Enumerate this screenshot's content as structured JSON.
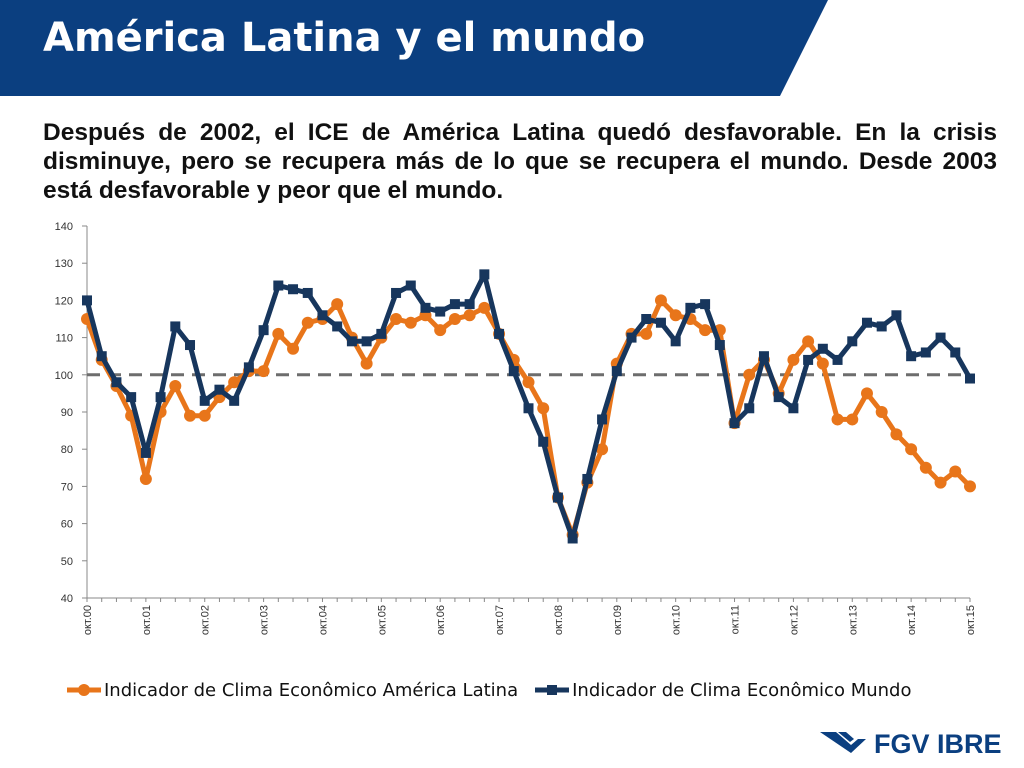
{
  "slide": {
    "title": "América Latina y el mundo",
    "subtitle": "Después de 2002, el ICE de América Latina quedó desfavorable. En la crisis disminuye, pero se recupera más de lo que se recupera el mundo. Desde 2003 está desfavorable y peor que el mundo.",
    "banner_color": "#0b3f80"
  },
  "chart_data": {
    "type": "line",
    "title": "",
    "xlabel": "",
    "ylabel": "",
    "ylim": [
      40,
      140
    ],
    "yticks": [
      "40",
      "50",
      "60",
      "70",
      "80",
      "90",
      "100",
      "110",
      "120",
      "130",
      "140"
    ],
    "xticks": [
      "окт.00",
      "окт.01",
      "окт.02",
      "окт.03",
      "окт.04",
      "окт.05",
      "окт.06",
      "окт.07",
      "окт.08",
      "окт.09",
      "окт.10",
      "окт.11",
      "окт.12",
      "окт.13",
      "окт.14",
      "окт.15"
    ],
    "x": [
      "окт.00",
      "янв.01",
      "апр.01",
      "июл.01",
      "окт.01",
      "янв.02",
      "апр.02",
      "июл.02",
      "окт.02",
      "янв.03",
      "апр.03",
      "июл.03",
      "окт.03",
      "янв.04",
      "апр.04",
      "июл.04",
      "окт.04",
      "янв.05",
      "апр.05",
      "июл.05",
      "окт.05",
      "янв.06",
      "апр.06",
      "июл.06",
      "окт.06",
      "янв.07",
      "апр.07",
      "июл.07",
      "окт.07",
      "янв.08",
      "апр.08",
      "июл.08",
      "окт.08",
      "янв.09",
      "апр.09",
      "июл.09",
      "окт.09",
      "янв.10",
      "апр.10",
      "июл.10",
      "окт.10",
      "янв.11",
      "апр.11",
      "июл.11",
      "окт.11",
      "янв.12",
      "апр.12",
      "июл.12",
      "окт.12",
      "янв.13",
      "апр.13",
      "июл.13",
      "окт.13",
      "янв.14",
      "апр.14",
      "июл.14",
      "окт.14",
      "янв.15",
      "апр.15",
      "июл.15",
      "окт.15"
    ],
    "reference_line": {
      "y": 100,
      "style": "dashed",
      "color": "#6d6d6d"
    },
    "grid": false,
    "legend_position": "bottom",
    "series": [
      {
        "name": "Indicador de Clima Econômico América Latina",
        "color": "#e8751a",
        "marker": "circle",
        "values": [
          115,
          104,
          97,
          89,
          72,
          90,
          97,
          89,
          89,
          94,
          98,
          101,
          101,
          111,
          107,
          114,
          115,
          119,
          110,
          103,
          110,
          115,
          114,
          116,
          112,
          115,
          116,
          118,
          111,
          104,
          98,
          91,
          67,
          57,
          71,
          80,
          103,
          111,
          111,
          120,
          116,
          115,
          112,
          112,
          87,
          100,
          104,
          95,
          104,
          109,
          103,
          88,
          88,
          95,
          90,
          84,
          80,
          75,
          71,
          74,
          70
        ]
      },
      {
        "name": "Indicador de Clima Econômico Mundo",
        "color": "#17365d",
        "marker": "square",
        "values": [
          120,
          105,
          98,
          94,
          79,
          94,
          113,
          108,
          93,
          96,
          93,
          102,
          112,
          124,
          123,
          122,
          116,
          113,
          109,
          109,
          111,
          122,
          124,
          118,
          117,
          119,
          119,
          127,
          111,
          101,
          91,
          82,
          67,
          56,
          72,
          88,
          101,
          110,
          115,
          114,
          109,
          118,
          119,
          108,
          87,
          91,
          105,
          94,
          91,
          104,
          107,
          104,
          109,
          114,
          113,
          116,
          105,
          106,
          110,
          106,
          99
        ]
      }
    ]
  },
  "logo": {
    "text": "FGV IBRE",
    "color": "#0b3f80"
  }
}
